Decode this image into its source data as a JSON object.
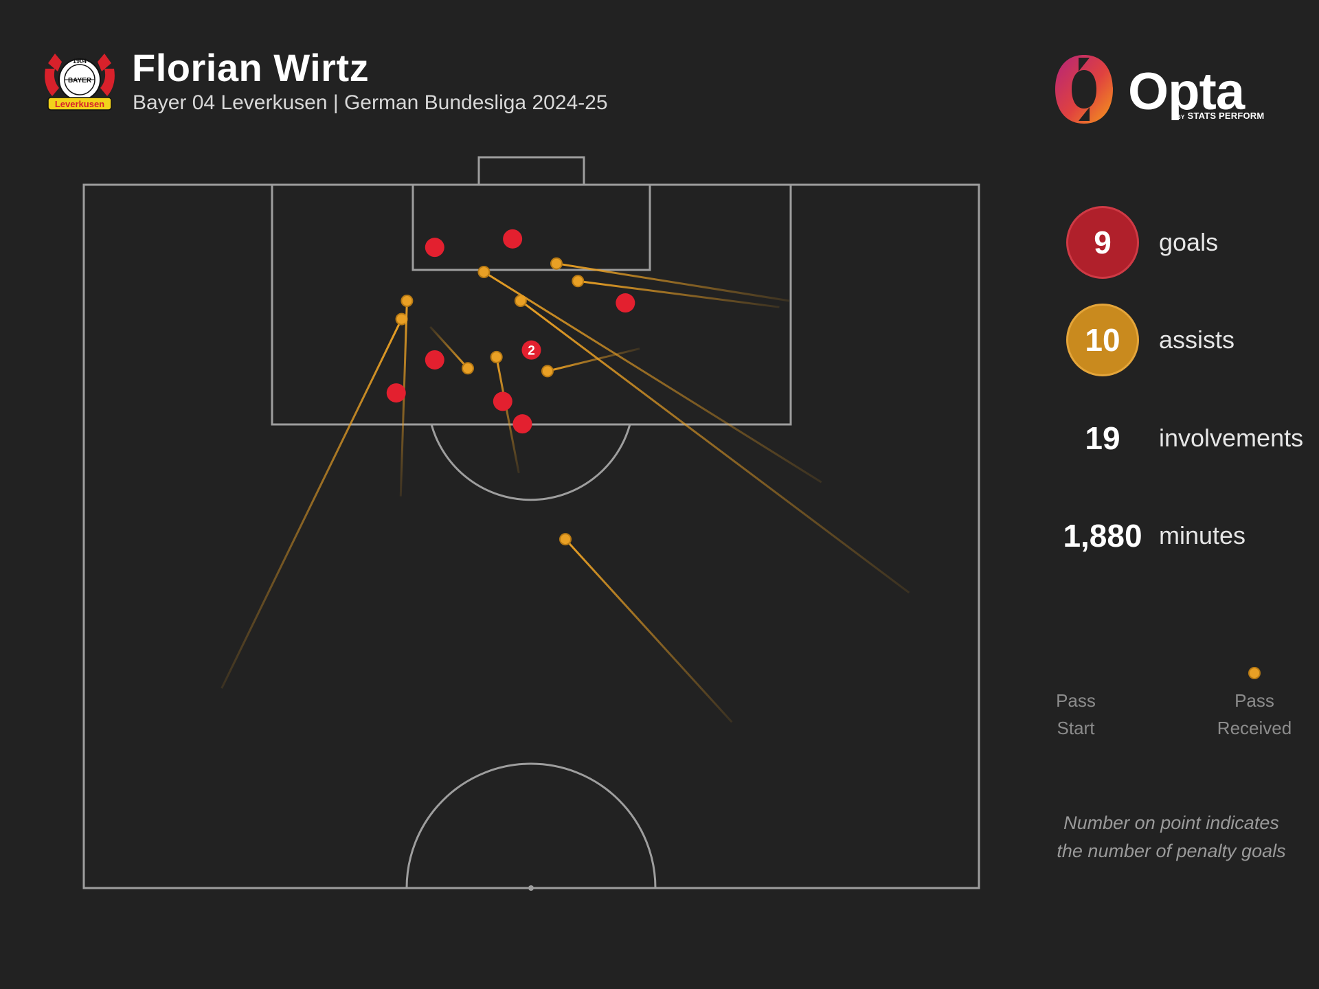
{
  "header": {
    "title": "Florian Wirtz",
    "subtitle": "Bayer 04 Leverkusen | German Bundesliga 2024-25",
    "crest_text": "Leverkusen",
    "crest_year": "1904",
    "crest_word": "BAYER",
    "brand": "Opta",
    "brand_by": "BY",
    "brand_sub": "STATS PERFORM"
  },
  "stats": {
    "goals_value": "9",
    "goals_label": "goals",
    "assists_value": "10",
    "assists_label": "assists",
    "involvements_value": "19",
    "involvements_label": "involvements",
    "minutes_value": "1,880",
    "minutes_label": "minutes"
  },
  "legend": {
    "start_line1": "Pass",
    "start_line2": "Start",
    "end_line1": "Pass",
    "end_line2": "Received"
  },
  "note": {
    "line1": "Number on point indicates",
    "line2": "the number of penalty goals"
  },
  "colors": {
    "background": "#222222",
    "goal": "#e3202f",
    "assist": "#e9a025",
    "pitch_line": "#9e9e9e"
  },
  "chart_data": {
    "type": "scatter",
    "pitch": "half-pitch, attacking goal at top",
    "coordinate_system": "x: 0 = left touchline, 100 = right touchline; y: 0 = halfway line, 100 = goal line",
    "goals": [
      {
        "x": 39.2,
        "y": 91.1
      },
      {
        "x": 47.9,
        "y": 92.3
      },
      {
        "x": 60.5,
        "y": 83.2
      },
      {
        "x": 50.0,
        "y": 76.5,
        "penalty_goals": 2
      },
      {
        "x": 39.2,
        "y": 75.1
      },
      {
        "x": 34.9,
        "y": 70.4
      },
      {
        "x": 46.8,
        "y": 69.2
      },
      {
        "x": 49.0,
        "y": 66.0
      }
    ],
    "assists": [
      {
        "start_x": 15.4,
        "start_y": 28.4,
        "end_x": 35.5,
        "end_y": 80.9
      },
      {
        "start_x": 35.4,
        "start_y": 55.7,
        "end_x": 36.1,
        "end_y": 83.5
      },
      {
        "start_x": 48.6,
        "start_y": 59.0,
        "end_x": 46.1,
        "end_y": 75.5
      },
      {
        "start_x": 38.7,
        "start_y": 79.8,
        "end_x": 42.9,
        "end_y": 73.9
      },
      {
        "start_x": 62.1,
        "start_y": 76.7,
        "end_x": 51.8,
        "end_y": 73.5
      },
      {
        "start_x": 72.4,
        "start_y": 23.6,
        "end_x": 53.8,
        "end_y": 49.6
      },
      {
        "start_x": 92.2,
        "start_y": 42.0,
        "end_x": 48.8,
        "end_y": 83.5
      },
      {
        "start_x": 82.4,
        "start_y": 57.7,
        "end_x": 44.7,
        "end_y": 87.6
      },
      {
        "start_x": 77.7,
        "start_y": 82.6,
        "end_x": 55.2,
        "end_y": 86.3
      },
      {
        "start_x": 78.8,
        "start_y": 83.5,
        "end_x": 52.8,
        "end_y": 88.8
      }
    ],
    "legend": [
      "Pass Start",
      "Pass Received"
    ],
    "annotations": [
      "Number on point indicates the number of penalty goals"
    ]
  }
}
